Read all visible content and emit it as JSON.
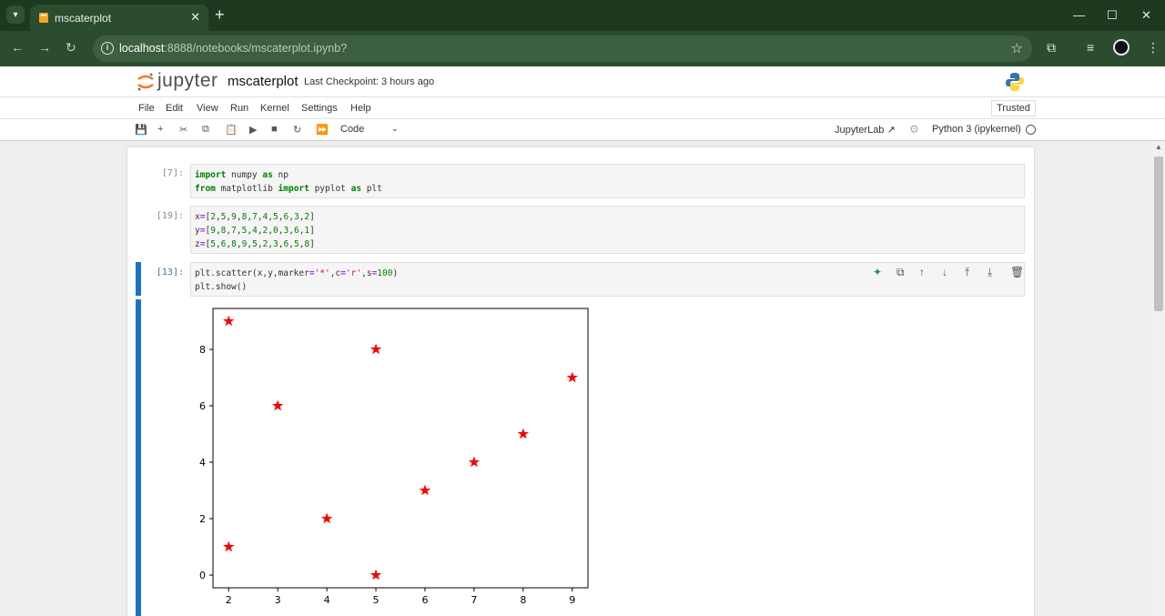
{
  "browser": {
    "tab_title": "mscaterplot",
    "url_host": "localhost",
    "url_rest": ":8888/notebooks/mscaterplot.ipynb?"
  },
  "jupyter": {
    "logo_text": "jupyter",
    "notebook_title": "mscaterplot",
    "checkpoint": "Last Checkpoint: 3 hours ago",
    "trusted": "Trusted",
    "menu": [
      "File",
      "Edit",
      "View",
      "Run",
      "Kernel",
      "Settings",
      "Help"
    ],
    "cell_type": "Code",
    "jupyterlab_link": "JupyterLab",
    "kernel": "Python 3 (ipykernel)"
  },
  "cells": [
    {
      "prompt": "[7]:",
      "lines": [
        "import numpy as np",
        "from matplotlib import pyplot as plt"
      ]
    },
    {
      "prompt": "[19]:",
      "lines": [
        "x=[2,5,9,8,7,4,5,6,3,2]",
        "y=[9,8,7,5,4,2,0,3,6,1]",
        "z=[5,6,8,9,5,2,3,6,5,8]"
      ]
    },
    {
      "prompt": "[13]:",
      "lines": [
        "plt.scatter(x,y,marker='*',c='r',s=100)",
        "plt.show()"
      ]
    }
  ],
  "colors": {
    "marker": "#ff0000",
    "accent": "#1a73c8"
  },
  "chart_data": {
    "type": "scatter",
    "marker": "star",
    "x": [
      2,
      5,
      9,
      8,
      7,
      4,
      5,
      6,
      3,
      2
    ],
    "y": [
      9,
      8,
      7,
      5,
      4,
      2,
      0,
      3,
      6,
      1
    ],
    "xticks": [
      2,
      3,
      4,
      5,
      6,
      7,
      8,
      9
    ],
    "yticks": [
      0,
      2,
      4,
      6,
      8
    ],
    "xlim": [
      1.68,
      9.32
    ],
    "ylim": [
      -0.45,
      9.45
    ],
    "grid": false
  }
}
